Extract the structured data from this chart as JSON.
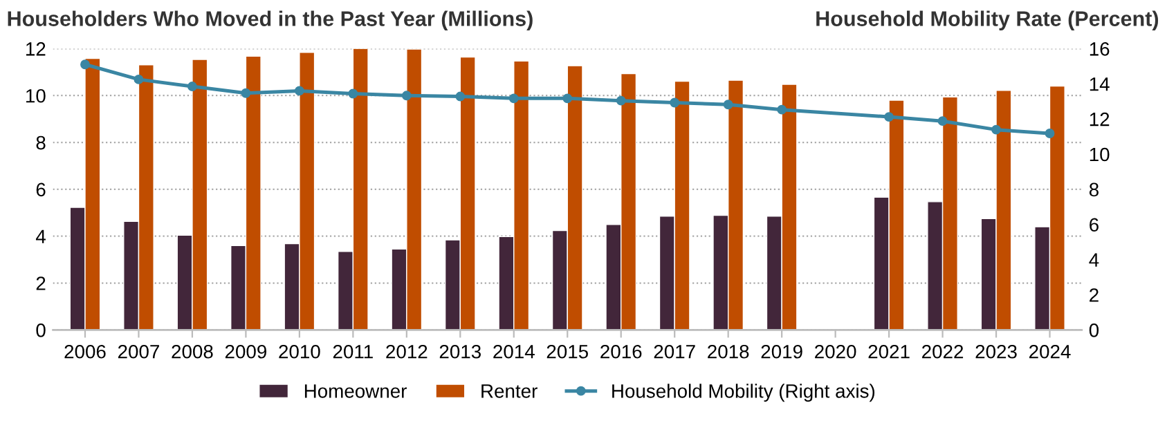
{
  "chart_data": {
    "type": "bar",
    "ylabel": "Householders Who Moved in the Past Year (Millions)",
    "y2label": "Household Mobility Rate (Percent)",
    "categories": [
      "2006",
      "2007",
      "2008",
      "2009",
      "2010",
      "2011",
      "2012",
      "2013",
      "2014",
      "2015",
      "2016",
      "2017",
      "2018",
      "2019",
      "2020",
      "2021",
      "2022",
      "2023",
      "2024"
    ],
    "series": [
      {
        "name": "Homeowner",
        "color": "#42263a",
        "values": [
          5.23,
          4.63,
          4.04,
          3.6,
          3.68,
          3.35,
          3.45,
          3.84,
          3.98,
          4.24,
          4.5,
          4.85,
          4.89,
          4.85,
          null,
          5.66,
          5.47,
          4.75,
          4.4
        ]
      },
      {
        "name": "Renter",
        "color": "#c04d00",
        "values": [
          11.58,
          11.31,
          11.54,
          11.68,
          11.84,
          12.0,
          11.98,
          11.64,
          11.47,
          11.27,
          10.93,
          10.61,
          10.65,
          10.48,
          null,
          9.8,
          9.94,
          10.22,
          10.4
        ]
      },
      {
        "name": "Household Mobility (Right axis)",
        "type": "line",
        "axis": "y2",
        "color": "#3a86a3",
        "values": [
          15.1,
          14.25,
          13.85,
          13.47,
          13.6,
          13.44,
          13.33,
          13.28,
          13.17,
          13.17,
          13.04,
          12.93,
          12.82,
          12.53,
          null,
          12.12,
          11.88,
          11.39,
          11.18
        ]
      }
    ],
    "ylim": [
      0,
      12
    ],
    "yticks": [
      0,
      2,
      4,
      6,
      8,
      10,
      12
    ],
    "y2lim": [
      0,
      16
    ],
    "y2ticks": [
      0,
      2,
      4,
      6,
      8,
      10,
      12,
      14,
      16
    ],
    "grid": "y",
    "legend": "bottom",
    "marker": "circle"
  }
}
